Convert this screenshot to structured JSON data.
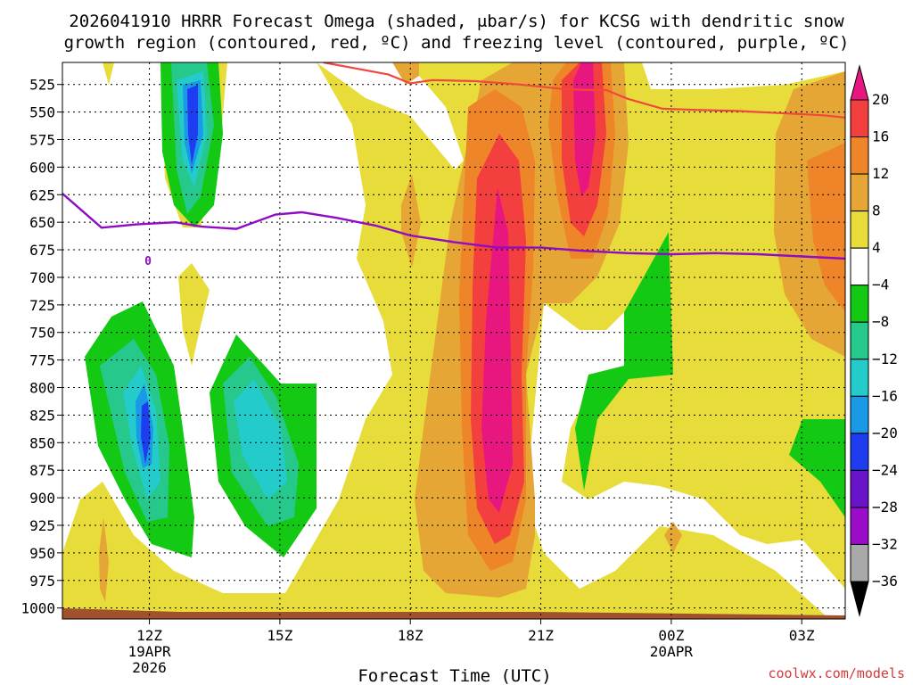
{
  "chart_data": {
    "type": "contour",
    "title_line1": "2026041910 HRRR Forecast Omega (shaded, μbar/s) for KCSG with dendritic snow",
    "title_line2": "growth region (contoured, red, ºC) and freezing level (contoured, purple, ºC)",
    "xlabel": "Forecast Time (UTC)",
    "credit": "coolwx.com/models",
    "x_ticks": [
      {
        "hour": 12,
        "label": "12Z",
        "sub1": "19APR",
        "sub2": "2026"
      },
      {
        "hour": 15,
        "label": "15Z",
        "sub1": "",
        "sub2": ""
      },
      {
        "hour": 18,
        "label": "18Z",
        "sub1": "",
        "sub2": ""
      },
      {
        "hour": 21,
        "label": "21Z",
        "sub1": "",
        "sub2": ""
      },
      {
        "hour": 24,
        "label": "00Z",
        "sub1": "20APR",
        "sub2": ""
      },
      {
        "hour": 27,
        "label": "03Z",
        "sub1": "",
        "sub2": ""
      }
    ],
    "xlim_hours": [
      10,
      28
    ],
    "y_levels": [
      525,
      550,
      575,
      600,
      625,
      650,
      675,
      700,
      725,
      750,
      775,
      800,
      825,
      850,
      875,
      900,
      925,
      950,
      975,
      1000
    ],
    "ylim_mb": [
      505,
      1010
    ],
    "freezing_level_label": "0",
    "colorbar": {
      "labels": [
        "20",
        "16",
        "12",
        "8",
        "4",
        "−4",
        "−8",
        "−12",
        "−16",
        "−20",
        "−24",
        "−28",
        "−32",
        "−36"
      ],
      "colors": [
        "#e8177f",
        "#f43f3f",
        "#ee8528",
        "#e5a636",
        "#e8dc3a",
        "#ffffff",
        "#13c913",
        "#26c98b",
        "#23cbcb",
        "#1a9ae6",
        "#1f3df0",
        "#6a14c9",
        "#9b0cc9",
        "#a9a9a9",
        "#000000"
      ],
      "top_arrow_color": "#e8177f",
      "bottom_arrow_color": "#000000"
    },
    "colors": {
      "ground": "#a0522d",
      "dgz_line": "#f0483c",
      "freezing_line": "#8f0bc4",
      "yellow": "#e8dc3a",
      "light_orange": "#e5a636",
      "orange": "#ee8528",
      "red": "#f43f3f",
      "magenta": "#e8177f",
      "green": "#13c913",
      "teal": "#26c98b",
      "cyan": "#23cbcb",
      "blue": "#1a9ae6",
      "dark_blue": "#1f3df0"
    },
    "freezing_level_series": {
      "hours": [
        10.0,
        10.9,
        11.7,
        12.6,
        13.2,
        14.0,
        14.9,
        15.5,
        16.3,
        17.2,
        18.0,
        19.0,
        20.0,
        21.0,
        22.0,
        23.0,
        24.0,
        25.0,
        26.0,
        27.0,
        28.0
      ],
      "mb": [
        624,
        655,
        652,
        650,
        654,
        656,
        643,
        641,
        646,
        653,
        662,
        668,
        673,
        673,
        676,
        678,
        679,
        678,
        679,
        681,
        683
      ]
    },
    "dgz_series": {
      "hours": [
        16.0,
        17.5,
        18.0,
        18.5,
        19.5,
        20.5,
        21.5,
        22.0,
        22.5,
        23.0,
        23.8,
        24.5,
        25.5,
        26.5,
        27.5,
        28.0
      ],
      "mb": [
        505,
        516,
        524,
        521,
        522,
        525,
        529,
        530,
        530,
        538,
        547,
        548,
        549,
        551,
        553,
        555
      ]
    }
  }
}
